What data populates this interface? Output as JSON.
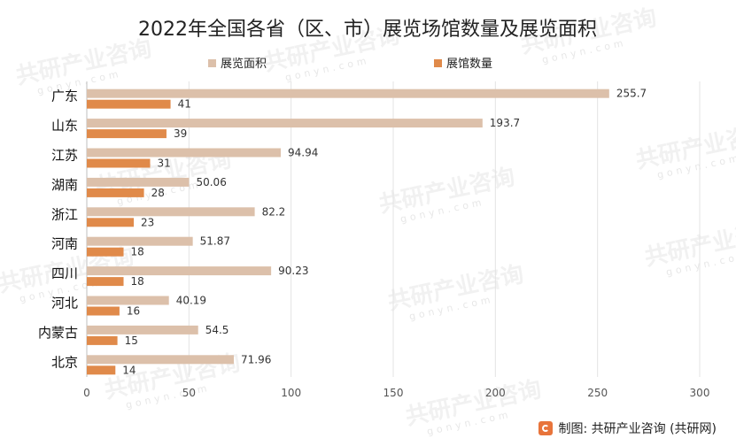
{
  "chart_data": {
    "type": "bar",
    "orientation": "horizontal",
    "title": "2022年全国各省（区、市）展览场馆数量及展览面积",
    "categories": [
      "广东",
      "山东",
      "江苏",
      "湖南",
      "浙江",
      "河南",
      "四川",
      "河北",
      "内蒙古",
      "北京"
    ],
    "series": [
      {
        "name": "展览面积",
        "color": "#dcc0aa",
        "values": [
          255.7,
          193.7,
          94.94,
          50.06,
          82.2,
          51.87,
          90.23,
          40.19,
          54.5,
          71.96
        ],
        "labels": [
          "255.7",
          "193.7",
          "94.94",
          "50.06",
          "82.2",
          "51.87",
          "90.23",
          "40.19",
          "54.5",
          "71.96"
        ]
      },
      {
        "name": "展馆数量",
        "color": "#e08a4a",
        "values": [
          41,
          39,
          31,
          28,
          23,
          18,
          18,
          16,
          15,
          14
        ],
        "labels": [
          "41",
          "39",
          "31",
          "28",
          "23",
          "18",
          "18",
          "16",
          "15",
          "14"
        ]
      }
    ],
    "xlim": [
      0,
      300
    ],
    "xticks": [
      "0",
      "50",
      "100",
      "150",
      "200",
      "250",
      "300"
    ],
    "grid": "vertical",
    "legend": "top-center"
  },
  "footer": {
    "source_label": "制图: 共研产业咨询 (共研网)"
  },
  "watermark": {
    "text": "共研产业咨询",
    "site": "gonyn.com"
  }
}
